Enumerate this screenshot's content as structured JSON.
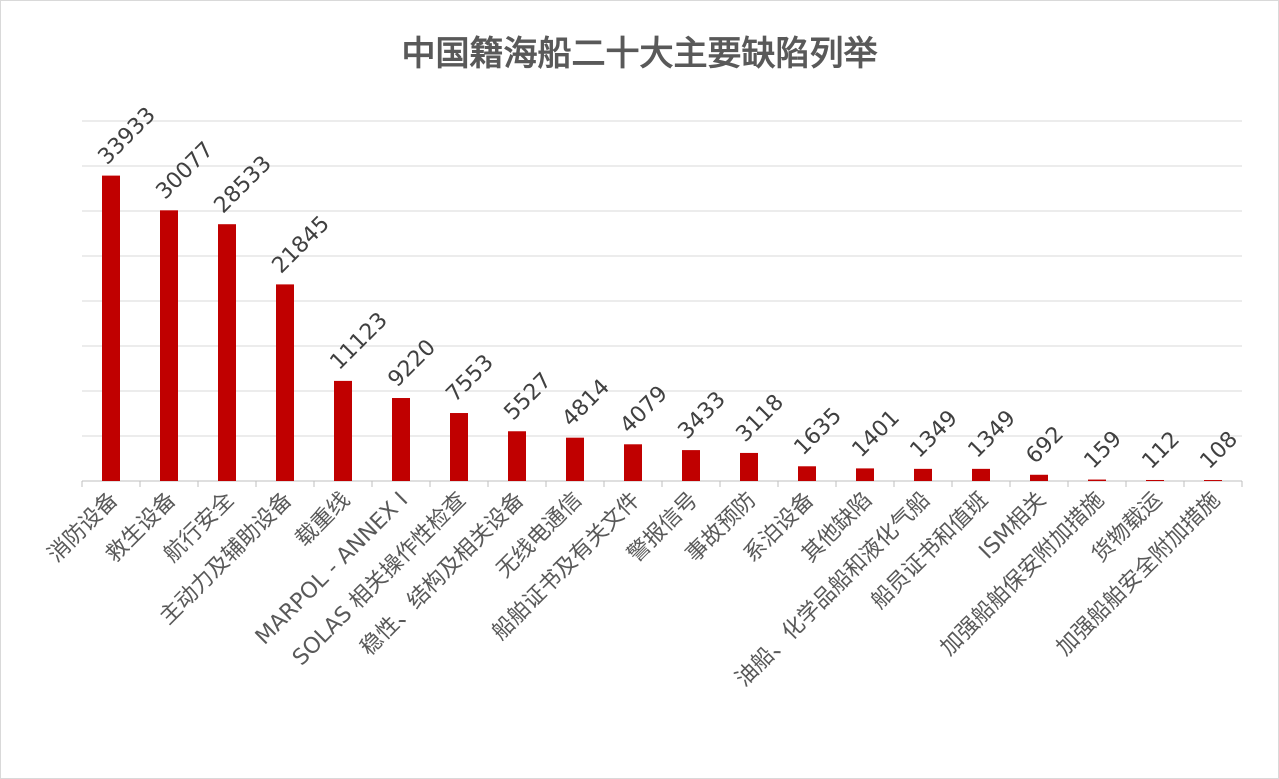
{
  "chart_data": {
    "type": "bar",
    "title": "中国籍海船二十大主要缺陷列举",
    "xlabel": "",
    "ylabel": "",
    "ylim": [
      0,
      40000
    ],
    "grid": true,
    "legend": "none",
    "bar_color": "#c00000",
    "categories": [
      "消防设备",
      "救生设备",
      "航行安全",
      "主动力及辅助设备",
      "载重线",
      "MARPOL - ANNEX I",
      "SOLAS 相关操作性检查",
      "稳性、结构及相关设备",
      "无线电通信",
      "船舶证书及有关文件",
      "警报信号",
      "事故预防",
      "系泊设备",
      "其他缺陷",
      "油船、化学品船和液化气船",
      "船员证书和值班",
      "ISM相关",
      "加强船舶保安附加措施",
      "货物载运",
      "加强船舶安全附加措施"
    ],
    "values": [
      33933,
      30077,
      28533,
      21845,
      11123,
      9220,
      7553,
      5527,
      4814,
      4079,
      3433,
      3118,
      1635,
      1401,
      1349,
      1349,
      692,
      159,
      112,
      108
    ]
  }
}
